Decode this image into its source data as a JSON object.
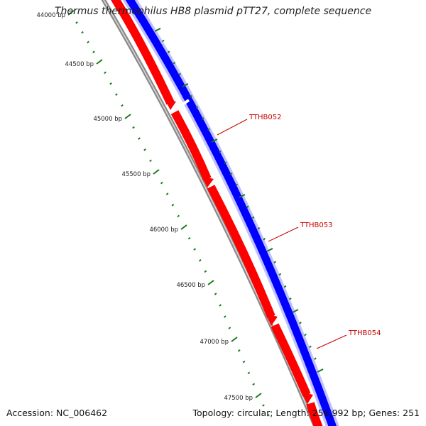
{
  "title": "Thermus thermophilus HB8 plasmid pTT27, complete sequence",
  "footer": {
    "accession": "Accession: NC_006462",
    "topology": "Topology: circular; Length: 256,992 bp; Genes: 251"
  },
  "ruler": {
    "labels": [
      "44000 bp",
      "44500 bp",
      "45000 bp",
      "45500 bp",
      "46000 bp",
      "46500 bp",
      "47000 bp",
      "47500 bp"
    ]
  },
  "genes": [
    {
      "label": "TTHB052"
    },
    {
      "label": "TTHB053"
    },
    {
      "label": "TTHB054"
    }
  ],
  "colors": {
    "forward_strand": "#0000ff",
    "reverse_strand": "#ff0000",
    "backbone": "#808080",
    "ruler_ticks": "#1a7a1a",
    "gene_label": "#cc0000"
  }
}
